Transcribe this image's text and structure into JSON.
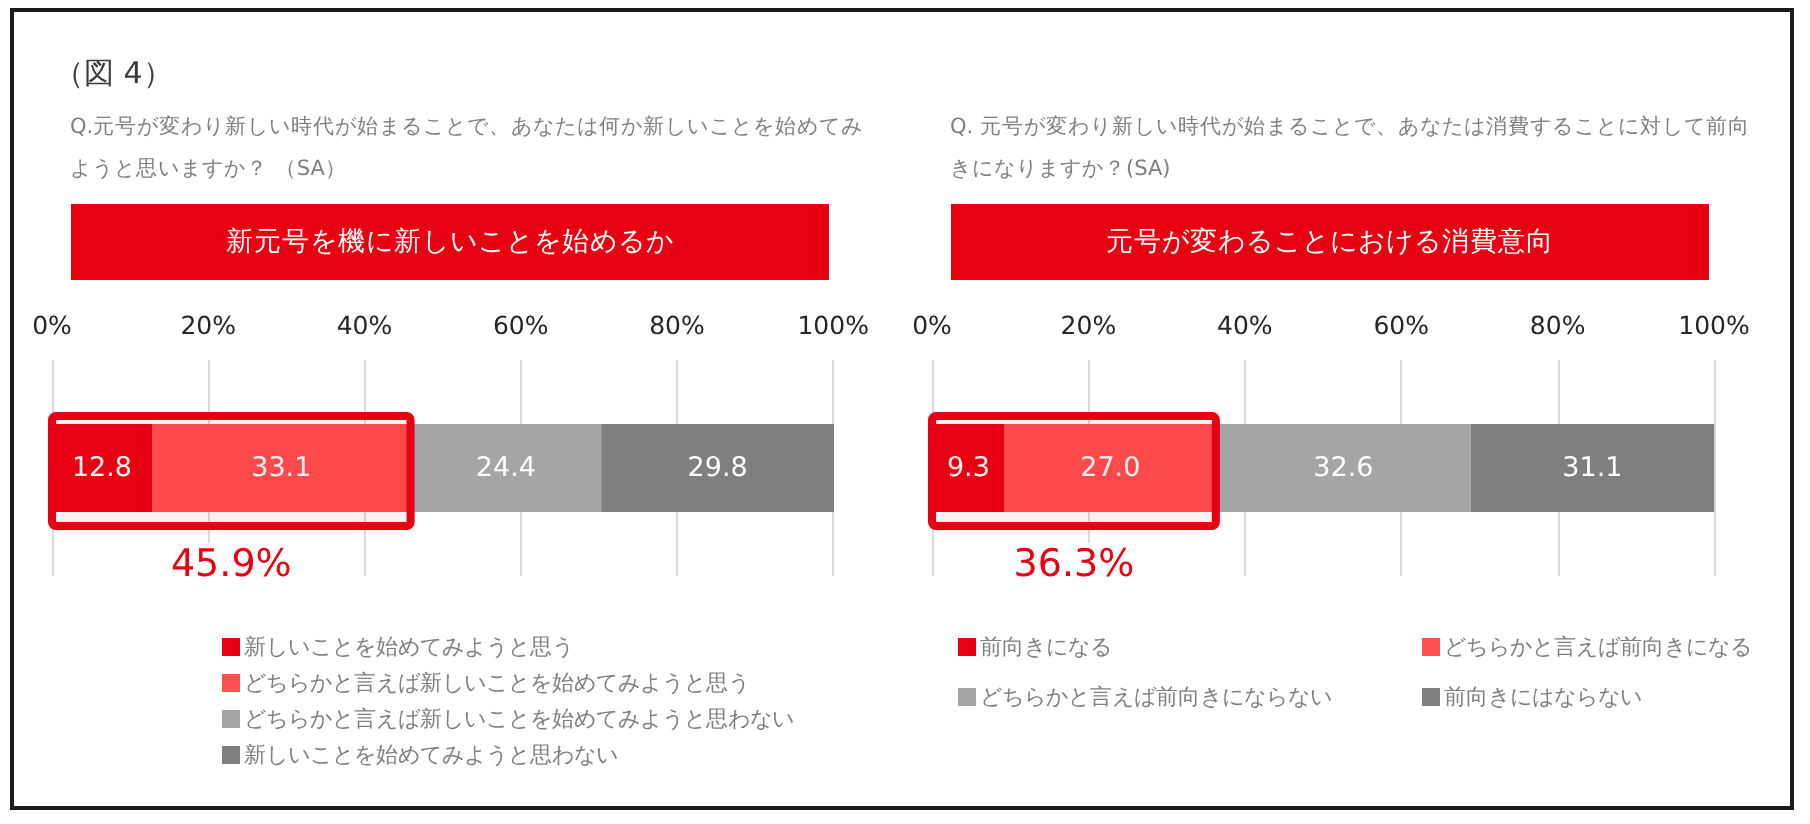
{
  "chart_data": [
    {
      "type": "bar",
      "orientation": "horizontal",
      "stacked": true,
      "title": "新元号を機に新しいことを始めるか",
      "subtitle": "Q.元号が変わり新しい時代が始まることで、あなたは何か新しいことを始めてみようと思いますか？ （SA）",
      "annotations": [
        "（図 4）"
      ],
      "categories": [
        null
      ],
      "series": [
        {
          "name": "新しいことを始めてみようと思う",
          "color": "#e60012",
          "values": [
            12.8
          ]
        },
        {
          "name": "どちらかと言えば新しいことを始めてみようと思う",
          "color": "#ff4f4f",
          "values": [
            33.1
          ]
        },
        {
          "name": "どちらかと言えば新しいことを始めてみようと思わない",
          "color": "#a5a5a5",
          "values": [
            24.4
          ]
        },
        {
          "name": "新しいことを始めてみようと思わない",
          "color": "#7f7f7f",
          "values": [
            29.8
          ]
        }
      ],
      "bands": [
        {
          "axis": "x",
          "from": 0,
          "to": 45.9,
          "label": "45.9%",
          "color": "#e60012"
        }
      ],
      "data_labels": true,
      "xlim": [
        0,
        100.1
      ],
      "xticks": [
        {
          "value": 0,
          "label": "0%"
        },
        {
          "value": 20,
          "label": "20%"
        },
        {
          "value": 40,
          "label": "40%"
        },
        {
          "value": 60,
          "label": "60%"
        },
        {
          "value": 80,
          "label": "80%"
        },
        {
          "value": 100,
          "label": "100%"
        }
      ],
      "grid": "x",
      "legend": "bottom"
    },
    {
      "type": "bar",
      "orientation": "horizontal",
      "stacked": true,
      "title": "元号が変わることにおける消費意向",
      "subtitle": "Q. 元号が変わり新しい時代が始まることで、あなたは消費することに対して前向きになりますか？(SA)",
      "categories": [
        null
      ],
      "series": [
        {
          "name": "前向きになる",
          "color": "#e60012",
          "values": [
            9.3
          ],
          "value_labels": [
            "9.3"
          ]
        },
        {
          "name": "どちらかと言えば前向きになる",
          "color": "#ff4f4f",
          "values": [
            27.0
          ],
          "value_labels": [
            "27.0"
          ]
        },
        {
          "name": "どちらかと言えば前向きにならない",
          "color": "#a5a5a5",
          "values": [
            32.6
          ],
          "value_labels": [
            "32.6"
          ]
        },
        {
          "name": "前向きにはならない",
          "color": "#7f7f7f",
          "values": [
            31.1
          ],
          "value_labels": [
            "31.1"
          ]
        }
      ],
      "bands": [
        {
          "axis": "x",
          "from": 0,
          "to": 36.3,
          "label": "36.3%",
          "color": "#e60012"
        }
      ],
      "xlim": [
        0,
        100
      ],
      "xticks": [
        {
          "value": 0,
          "label": "0%"
        },
        {
          "value": 20,
          "label": "20%"
        },
        {
          "value": 40,
          "label": "40%"
        },
        {
          "value": 60,
          "label": "60%"
        },
        {
          "value": 80,
          "label": "80%"
        },
        {
          "value": 100,
          "label": "100%"
        }
      ],
      "grid": "x",
      "legend": "bottom"
    }
  ]
}
